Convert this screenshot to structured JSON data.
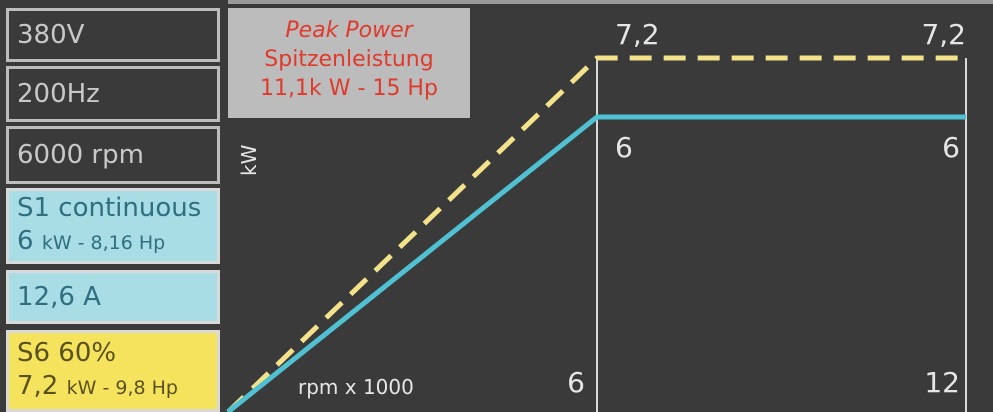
{
  "specs": {
    "voltage": "380V",
    "frequency": "200Hz",
    "speed": "6000 rpm",
    "s1_title": "S1 continuous",
    "s1_kw": "6",
    "s1_power": "kW - 8,16 Hp",
    "current": "12,6 A",
    "s6_title": "S6 60%",
    "s6_kw": "7,2",
    "s6_power": "kW - 9,8 Hp"
  },
  "peak": {
    "line1": "Peak Power",
    "line2": "Spitzenleistung",
    "line3": "11,1k W - 15 Hp"
  },
  "colors": {
    "s1_line": "#4fc1d3",
    "s6_line": "#f3e28a",
    "background": "#3a3a3a"
  },
  "chart_data": {
    "type": "line",
    "xlabel": "rpm x 1000",
    "ylabel": "kW",
    "xlim": [
      0,
      12
    ],
    "ylim": [
      0,
      8
    ],
    "x_ticks": [
      "6",
      "12"
    ],
    "series": [
      {
        "name": "S6 60%",
        "style": "dashed",
        "x": [
          0,
          6,
          12
        ],
        "y": [
          0,
          7.2,
          7.2
        ],
        "labels": [
          "7,2",
          "7,2"
        ]
      },
      {
        "name": "S1 continuous",
        "style": "solid",
        "x": [
          0,
          6,
          12
        ],
        "y": [
          0,
          6,
          6
        ],
        "labels": [
          "6",
          "6"
        ]
      }
    ]
  }
}
